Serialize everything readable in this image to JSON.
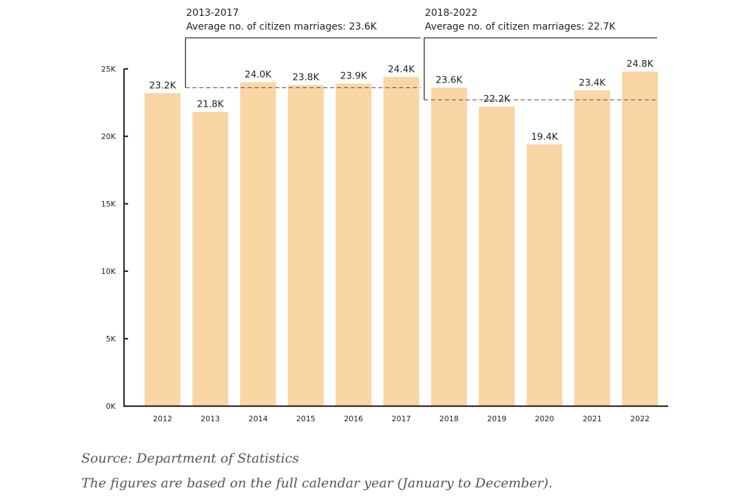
{
  "chart_data": {
    "type": "bar",
    "categories": [
      "2012",
      "2013",
      "2014",
      "2015",
      "2016",
      "2017",
      "2018",
      "2019",
      "2020",
      "2021",
      "2022"
    ],
    "values": [
      23.2,
      21.8,
      24.0,
      23.8,
      23.9,
      24.4,
      23.6,
      22.2,
      19.4,
      23.4,
      24.8
    ],
    "value_labels": [
      "23.2K",
      "21.8K",
      "24.0K",
      "23.8K",
      "23.9K",
      "24.4K",
      "23.6K",
      "22.2K",
      "19.4K",
      "23.4K",
      "24.8K"
    ],
    "y_unit": "thousands",
    "ylim": [
      0,
      25
    ],
    "y_ticks": [
      0,
      5,
      10,
      15,
      20,
      25
    ],
    "y_tick_labels": [
      "0K",
      "5K",
      "10K",
      "15K",
      "20K",
      "25K"
    ],
    "grid": false,
    "legend": "none",
    "bar_color": "#f9d6a4",
    "annotations": [
      {
        "period": "2013-2017",
        "text": "Average no. of citizen marriages: 23.6K",
        "average": 23.6,
        "from": "2013",
        "to": "2017"
      },
      {
        "period": "2018-2022",
        "text": "Average no. of citizen marriages: 22.7K",
        "average": 22.7,
        "from": "2018",
        "to": "2022"
      }
    ]
  },
  "notes": {
    "source": "Source: Department of Statistics",
    "footnote": "The figures are based on the full calendar year (January to December)."
  }
}
